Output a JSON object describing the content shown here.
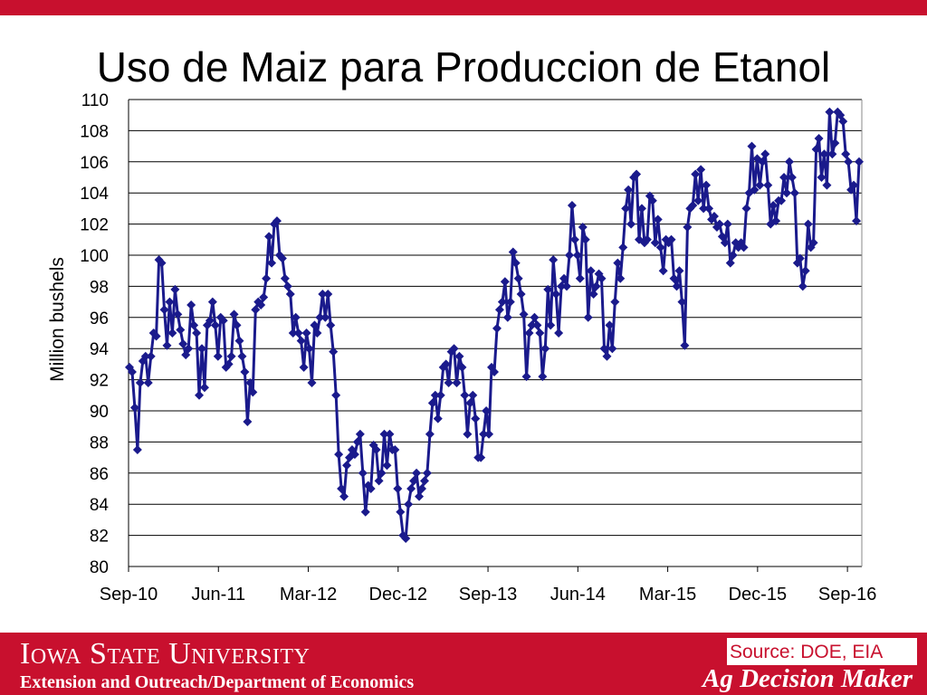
{
  "slide": {
    "title": "Uso de Maiz para Produccion de Etanol"
  },
  "footer": {
    "university": "Iowa State University",
    "department": "Extension and Outreach/Department of Economics",
    "source": "Source: DOE, EIA",
    "program": "Ag Decision Maker"
  },
  "colors": {
    "accent": "#c8102e",
    "series": "#1a1a8c",
    "grid": "#000000"
  },
  "chart_data": {
    "type": "line",
    "title": "",
    "xlabel": "",
    "ylabel": "Million bushels",
    "ylim": [
      80,
      110
    ],
    "yticks": [
      80,
      82,
      84,
      86,
      88,
      90,
      92,
      94,
      96,
      98,
      100,
      102,
      104,
      106,
      108,
      110
    ],
    "xticks": [
      "Sep-10",
      "Jun-11",
      "Mar-12",
      "Dec-12",
      "Sep-13",
      "Jun-14",
      "Mar-15",
      "Dec-15",
      "Sep-16"
    ],
    "grid": true,
    "marker": "diamond",
    "series": [
      {
        "name": "",
        "values": [
          92.8,
          92.5,
          90.2,
          87.5,
          91.8,
          93.2,
          93.5,
          91.8,
          93.5,
          95.0,
          94.8,
          99.7,
          99.5,
          96.5,
          94.2,
          97.0,
          95.0,
          97.8,
          96.2,
          95.2,
          94.3,
          93.6,
          94.0,
          96.8,
          95.5,
          95.0,
          91.0,
          94.0,
          91.5,
          95.5,
          95.8,
          97.0,
          95.5,
          93.5,
          96.0,
          95.8,
          92.8,
          93.0,
          93.5,
          96.2,
          95.5,
          94.5,
          93.5,
          92.5,
          89.3,
          91.8,
          91.2,
          96.5,
          97.0,
          96.8,
          97.3,
          98.5,
          101.2,
          99.5,
          102.0,
          102.2,
          100.0,
          99.8,
          98.5,
          98.0,
          97.5,
          95.0,
          96.0,
          95.0,
          94.5,
          92.8,
          95.0,
          94.0,
          91.8,
          95.5,
          95.0,
          96.0,
          97.5,
          96.0,
          97.5,
          95.5,
          93.8,
          91.0,
          87.2,
          85.0,
          84.5,
          86.5,
          87.0,
          87.5,
          87.2,
          88.0,
          88.5,
          86.0,
          83.5,
          85.2,
          85.0,
          87.8,
          87.5,
          85.5,
          86.0,
          88.5,
          86.5,
          88.5,
          87.5,
          87.5,
          85.0,
          83.5,
          82.0,
          81.8,
          84.0,
          85.0,
          85.5,
          86.0,
          84.5,
          85.0,
          85.5,
          86.0,
          88.5,
          90.5,
          91.0,
          89.5,
          91.0,
          92.8,
          93.0,
          91.8,
          93.8,
          94.0,
          91.8,
          93.5,
          92.8,
          91.0,
          88.5,
          90.5,
          91.0,
          89.5,
          87.0,
          87.0,
          88.5,
          90.0,
          88.5,
          92.8,
          92.5,
          95.3,
          96.5,
          97.0,
          98.3,
          96.0,
          97.0,
          100.2,
          99.5,
          98.5,
          97.5,
          96.2,
          92.2,
          95.0,
          95.5,
          96.0,
          95.5,
          95.0,
          92.2,
          94.0,
          97.8,
          95.5,
          99.7,
          97.5,
          95.0,
          98.0,
          98.5,
          98.0,
          100.0,
          103.2,
          101.0,
          100.0,
          98.5,
          101.8,
          101.0,
          96.0,
          99.0,
          97.5,
          98.0,
          98.8,
          98.5,
          94.0,
          93.5,
          95.5,
          94.0,
          97.0,
          99.5,
          98.5,
          100.5,
          103.0,
          104.2,
          102.0,
          105.0,
          105.2,
          101.0,
          103.0,
          100.8,
          101.0,
          103.8,
          103.5,
          100.8,
          102.3,
          100.5,
          99.0,
          101.0,
          100.8,
          101.0,
          98.5,
          98.0,
          99.0,
          97.0,
          94.2,
          101.8,
          103.0,
          103.2,
          105.2,
          103.5,
          105.5,
          103.0,
          104.5,
          103.0,
          102.3,
          102.5,
          101.8,
          102.0,
          101.2,
          100.8,
          102.0,
          99.5,
          100.0,
          100.8,
          100.5,
          100.8,
          100.5,
          103.0,
          104.0,
          107.0,
          104.2,
          106.2,
          104.5,
          106.0,
          106.5,
          104.5,
          102.0,
          103.2,
          102.2,
          103.5,
          103.5,
          105.0,
          104.0,
          106.0,
          105.0,
          104.0,
          99.5,
          99.8,
          98.0,
          99.0,
          102.0,
          100.5,
          100.8,
          106.8,
          107.5,
          105.0,
          106.5,
          104.5,
          109.2,
          106.5,
          107.2,
          109.2,
          109.0,
          108.6,
          106.5,
          106.0,
          104.2,
          104.5,
          102.2,
          106.0
        ]
      }
    ]
  }
}
